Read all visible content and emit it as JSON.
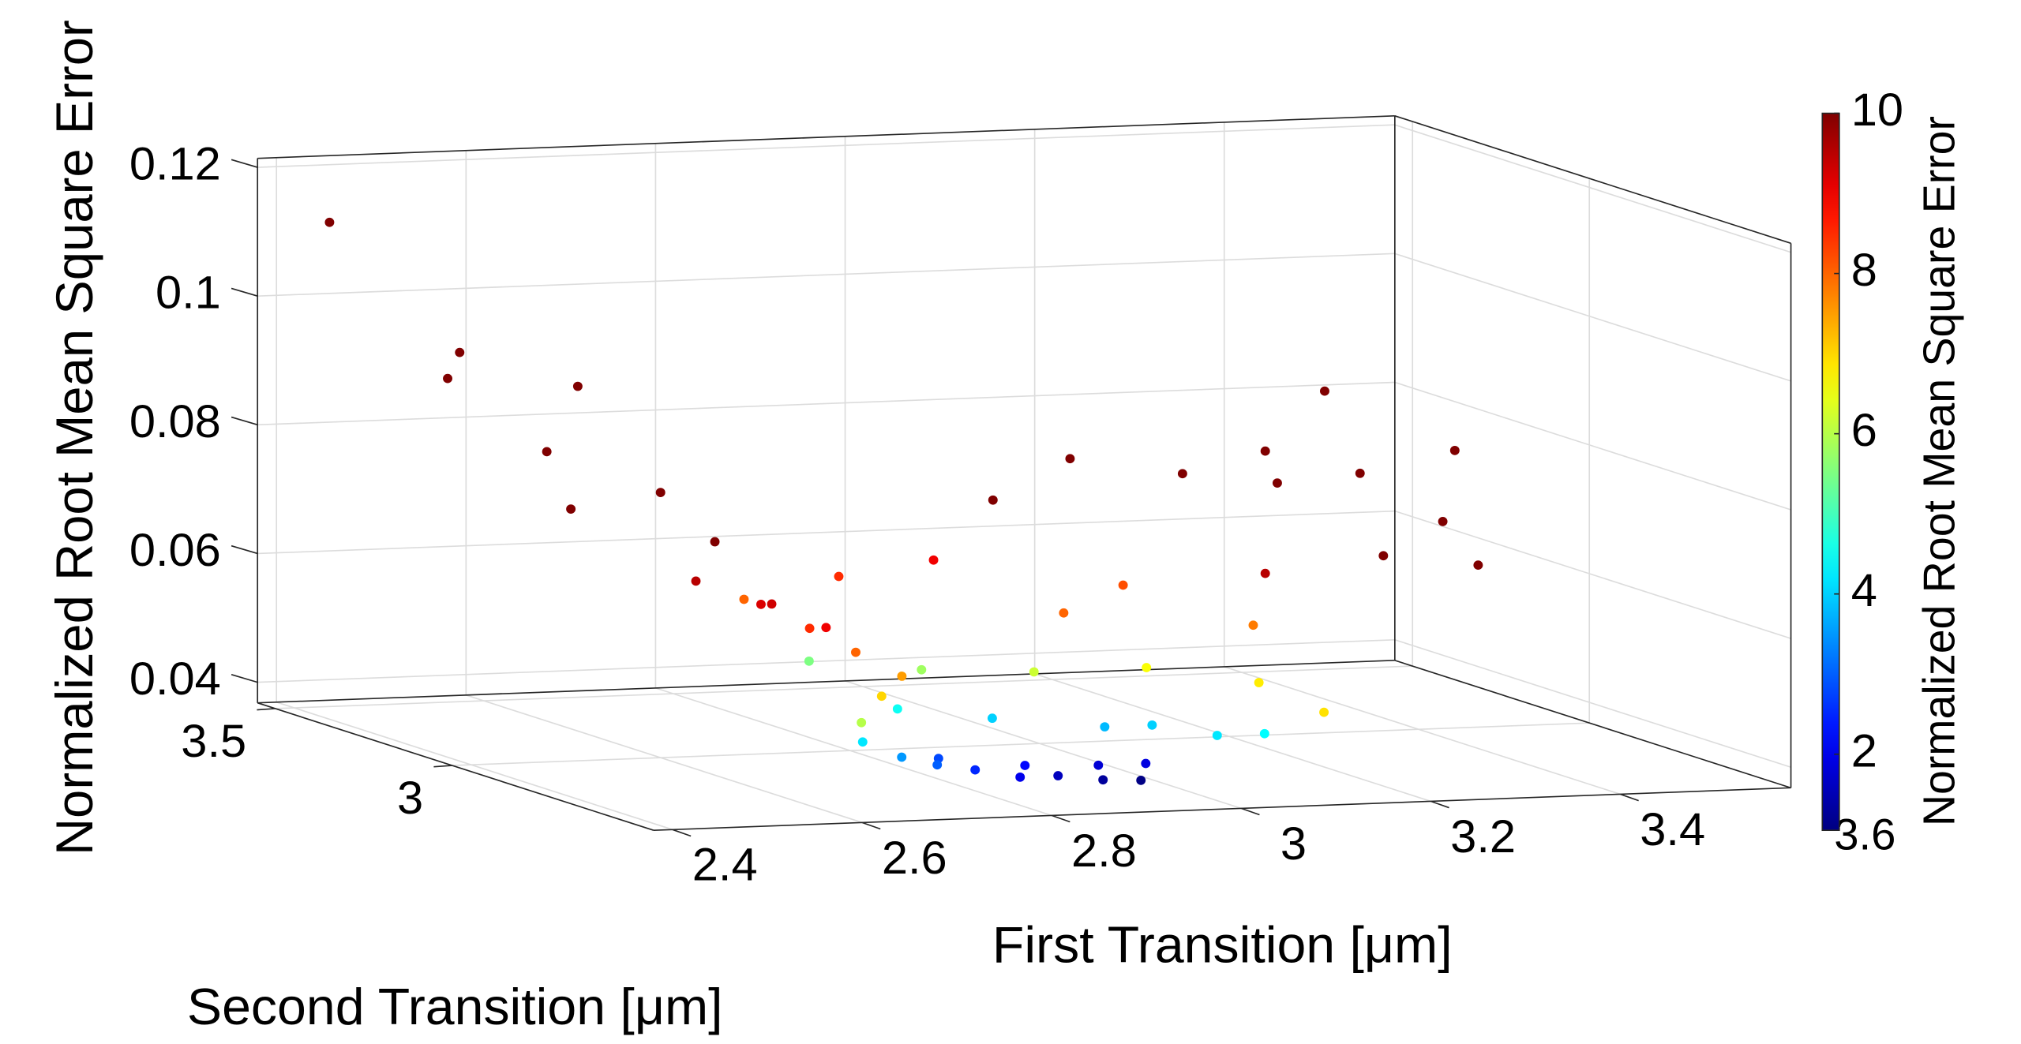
{
  "chart_data": {
    "type": "scatter3d",
    "xlabel": "First Transition [μm]",
    "ylabel": "Second Transition [μm]",
    "zlabel": "Normalized Root Mean Square Error",
    "colorbar_label": "Normalized Root Mean Square Error",
    "colorbar_bottom_label": "3.6",
    "xlim": [
      2.38,
      3.58
    ],
    "ylim": [
      2.43,
      3.55
    ],
    "zlim": [
      0.0368,
      0.1214
    ],
    "xticks": [
      2.4,
      2.6,
      2.8,
      3,
      3.2,
      3.4
    ],
    "yticks": [
      3,
      3.5
    ],
    "zticks": [
      0.04,
      0.06,
      0.08,
      0.1,
      0.12
    ],
    "clim": [
      1.05,
      10
    ],
    "cticks": [
      2,
      4,
      6,
      8,
      10
    ],
    "colormap": "jet",
    "grid": true,
    "x": [
      2.4,
      2.45,
      2.5,
      2.55,
      2.48,
      2.6,
      2.58,
      2.62,
      2.6,
      2.65,
      2.7,
      2.68,
      2.72,
      2.75,
      2.78,
      2.74,
      2.7,
      2.72,
      2.75,
      2.78,
      2.82,
      2.86,
      2.9,
      2.94,
      2.98,
      2.8,
      2.88,
      2.95,
      3.0,
      2.85,
      2.95,
      3.05,
      3.15,
      3.2,
      3.1,
      2.85,
      2.95,
      3.05,
      3.15,
      3.25,
      3.3,
      2.8,
      2.9,
      3.0,
      3.1,
      3.2,
      3.3,
      3.35,
      3.1,
      3.2,
      3.3,
      3.35,
      3.4,
      3.45,
      3.5,
      3.55,
      3.45,
      3.5,
      3.4
    ],
    "y": [
      3.4,
      3.2,
      3.3,
      3.1,
      3.0,
      3.0,
      3.2,
      2.9,
      2.9,
      2.85,
      2.8,
      2.9,
      2.9,
      2.85,
      2.8,
      2.75,
      2.7,
      2.75,
      2.72,
      2.7,
      2.7,
      2.68,
      2.68,
      2.66,
      2.66,
      2.75,
      2.72,
      2.7,
      2.7,
      3.0,
      3.0,
      2.95,
      2.9,
      2.9,
      2.95,
      3.25,
      3.2,
      3.15,
      3.1,
      3.05,
      3.0,
      3.3,
      3.3,
      3.3,
      3.2,
      3.3,
      3.2,
      3.3,
      3.4,
      3.45,
      3.4,
      3.3,
      3.4,
      3.3,
      3.2,
      3.3,
      3.4,
      3.1,
      3.1
    ],
    "z": [
      0.114,
      0.093,
      0.095,
      0.093,
      0.085,
      0.078,
      0.072,
      0.072,
      0.066,
      0.063,
      0.06,
      0.062,
      0.058,
      0.055,
      0.052,
      0.05,
      0.047,
      0.043,
      0.041,
      0.04,
      0.039,
      0.038,
      0.038,
      0.0375,
      0.0372,
      0.04,
      0.039,
      0.039,
      0.039,
      0.043,
      0.041,
      0.04,
      0.039,
      0.039,
      0.04,
      0.046,
      0.045,
      0.045,
      0.046,
      0.044,
      0.04,
      0.055,
      0.058,
      0.06,
      0.053,
      0.055,
      0.05,
      0.056,
      0.067,
      0.072,
      0.07,
      0.075,
      0.068,
      0.071,
      0.065,
      0.074,
      0.082,
      0.06,
      0.062
    ],
    "color_values": [
      10,
      10,
      10,
      10,
      10,
      10,
      10,
      10,
      9.5,
      9.2,
      9,
      9.3,
      8.5,
      8,
      7.5,
      7,
      6,
      4.2,
      3.5,
      3,
      2.5,
      2,
      1.6,
      1.3,
      1.1,
      2.8,
      2.2,
      1.8,
      1.9,
      4.5,
      4,
      3.8,
      4.2,
      4.4,
      4,
      5.5,
      5.8,
      6.2,
      6.6,
      6.8,
      6.9,
      8,
      8.5,
      9,
      8,
      8.2,
      7.8,
      9.5,
      10,
      10,
      10,
      10,
      10,
      10,
      10,
      10,
      10,
      10,
      10
    ]
  }
}
